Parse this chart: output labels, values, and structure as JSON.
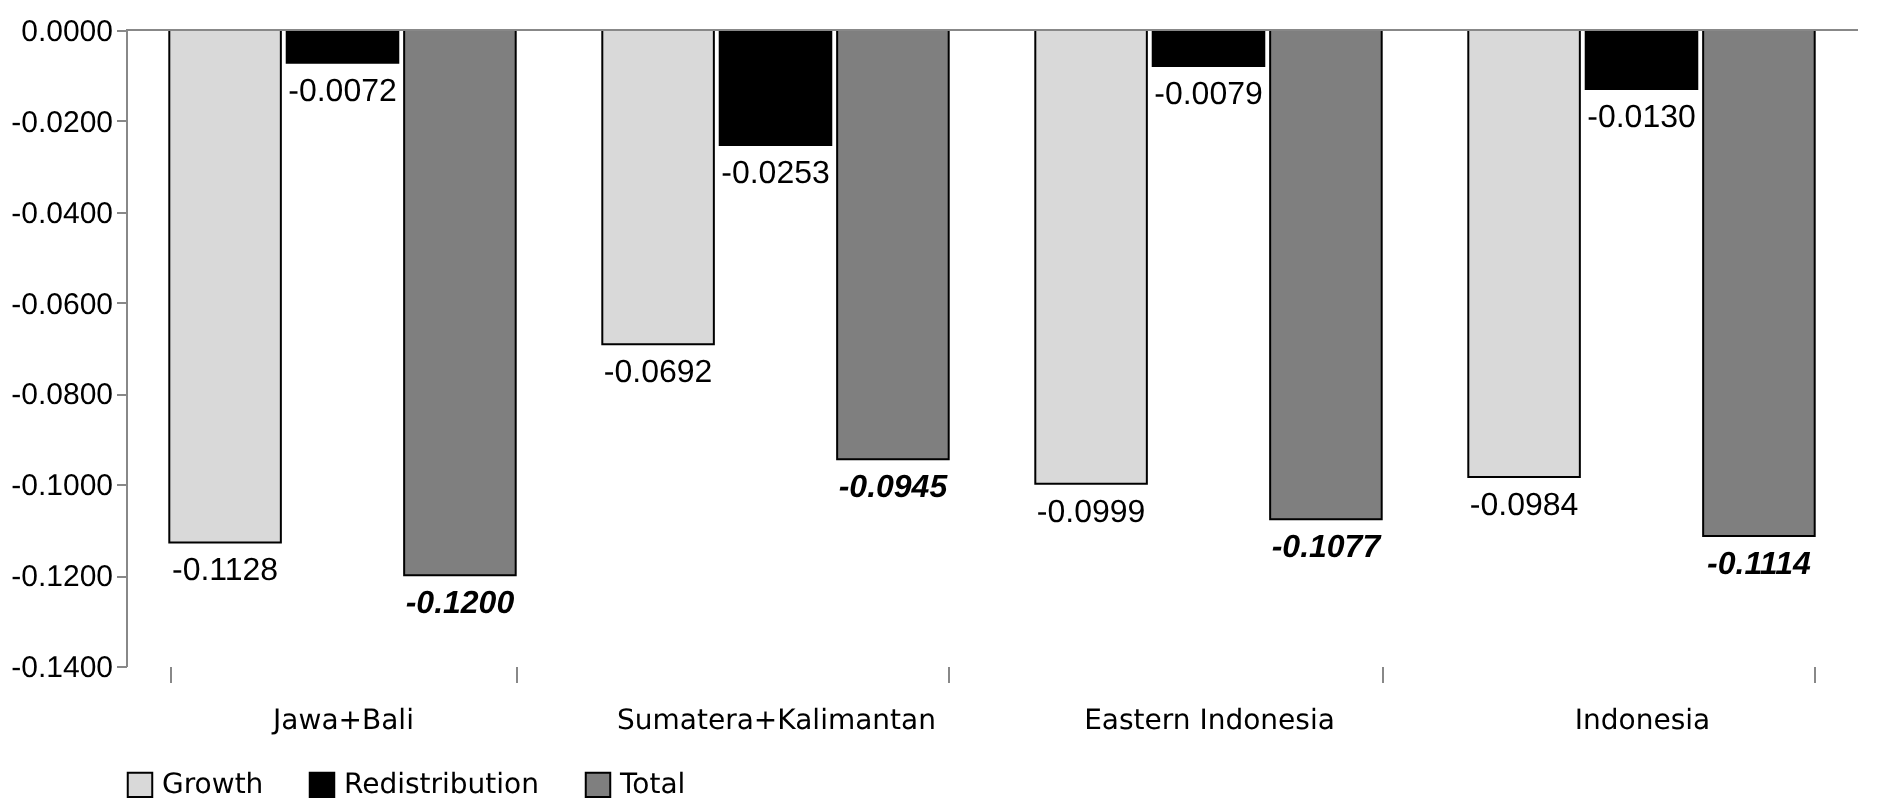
{
  "chart_data": {
    "type": "bar",
    "categories": [
      "Jawa+Bali",
      "Sumatera+Kalimantan",
      "Eastern Indonesia",
      "Indonesia"
    ],
    "series": [
      {
        "name": "Growth",
        "color": "#d9d9d9",
        "values": [
          -0.1128,
          -0.0692,
          -0.0999,
          -0.0984
        ],
        "value_labels": [
          "-0.1128",
          "-0.0692",
          "-0.0999",
          "-0.0984"
        ]
      },
      {
        "name": "Redistribution",
        "color": "#000000",
        "values": [
          -0.0072,
          -0.0253,
          -0.0079,
          -0.013
        ],
        "value_labels": [
          "-0.0072",
          "-0.0253",
          "-0.0079",
          "-0.0130"
        ]
      },
      {
        "name": "Total",
        "color": "#7f7f7f",
        "values": [
          -0.12,
          -0.0945,
          -0.1077,
          -0.1114
        ],
        "value_labels": [
          "-0.1200",
          "-0.0945",
          "-0.1077",
          "-0.1114"
        ]
      }
    ],
    "ylim": [
      -0.14,
      0
    ],
    "yticks": [
      {
        "value": 0,
        "label": "0.0000"
      },
      {
        "value": -0.02,
        "label": "-0.0200"
      },
      {
        "value": -0.04,
        "label": "-0.0400"
      },
      {
        "value": -0.06,
        "label": "-0.0600"
      },
      {
        "value": -0.08,
        "label": "-0.0800"
      },
      {
        "value": -0.1,
        "label": "-0.1000"
      },
      {
        "value": -0.12,
        "label": "-0.1200"
      },
      {
        "value": -0.14,
        "label": "-0.1400"
      }
    ],
    "legend": "bottom"
  }
}
